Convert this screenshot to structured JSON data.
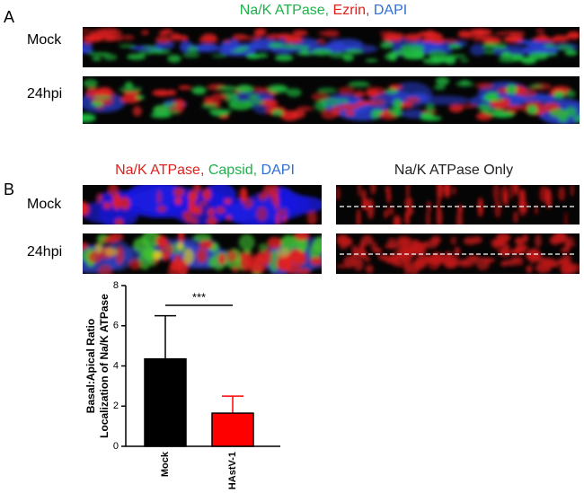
{
  "panels": [
    {
      "label": "A",
      "headers": [
        [
          {
            "text": "Na/K ATPase,",
            "color": "#1fb24a"
          },
          {
            "text": " Ezrin,",
            "color": "#e0201b"
          },
          {
            "text": " DAPI",
            "color": "#2e6fd8"
          }
        ]
      ],
      "rows": [
        "Mock",
        "24hpi"
      ]
    },
    {
      "label": "B",
      "headers": [
        [
          {
            "text": "Na/K ATPase,",
            "color": "#e0201b"
          },
          {
            "text": " Capsid,",
            "color": "#1fb24a"
          },
          {
            "text": " DAPI",
            "color": "#2e6fd8"
          }
        ],
        [
          {
            "text": "Na/K ATPase Only",
            "color": "#222222"
          }
        ]
      ],
      "rows": [
        "Mock",
        "24hpi"
      ]
    }
  ],
  "chart_data": {
    "type": "bar",
    "ylabel": [
      "Basal:Apical Ratio",
      "Localization of Na/K ATPase"
    ],
    "categories": [
      "Mock",
      "HAstV-1"
    ],
    "values": [
      4.35,
      1.65
    ],
    "errors": [
      2.15,
      0.85
    ],
    "colors": [
      "#000000",
      "#ff0000"
    ],
    "ylim": [
      0,
      8
    ],
    "yticks": [
      0,
      2,
      4,
      6,
      8
    ],
    "significance": "***"
  }
}
